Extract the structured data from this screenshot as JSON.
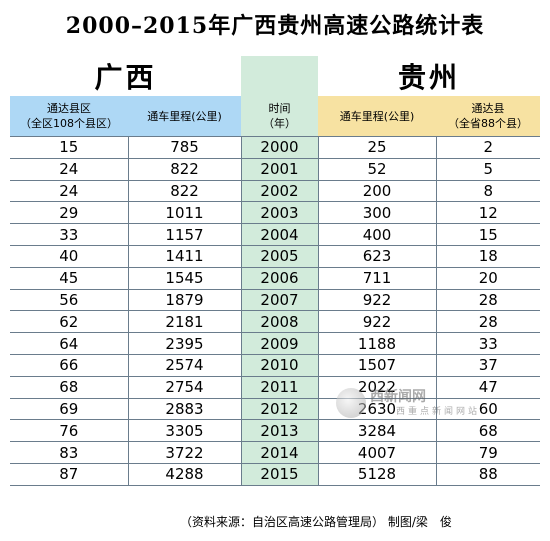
{
  "title": "2000–2015年广西贵州高速公路统计表",
  "left_region": "广西",
  "right_region": "贵州",
  "headers": {
    "gx_counties": "通达县区\n（全区108个县区）",
    "gx_km": "通车里程(公里)",
    "year": "时间\n（年）",
    "gz_km": "通车里程(公里)",
    "gz_counties": "通达县\n（全省88个县）"
  },
  "chart_data": {
    "type": "table",
    "title": "2000–2015年广西贵州高速公路统计表",
    "columns": [
      "通达县区（全区108个县区）",
      "通车里程(公里)",
      "时间（年）",
      "通车里程(公里)",
      "通达县（全省88个县）"
    ],
    "rows": [
      [
        "15",
        "785",
        "2000",
        "25",
        "2"
      ],
      [
        "24",
        "822",
        "2001",
        "52",
        "5"
      ],
      [
        "24",
        "822",
        "2002",
        "200",
        "8"
      ],
      [
        "29",
        "1011",
        "2003",
        "300",
        "12"
      ],
      [
        "33",
        "1157",
        "2004",
        "400",
        "15"
      ],
      [
        "40",
        "1411",
        "2005",
        "623",
        "18"
      ],
      [
        "45",
        "1545",
        "2006",
        "711",
        "20"
      ],
      [
        "56",
        "1879",
        "2007",
        "922",
        "28"
      ],
      [
        "62",
        "2181",
        "2008",
        "922",
        "28"
      ],
      [
        "64",
        "2395",
        "2009",
        "1188",
        "33"
      ],
      [
        "66",
        "2574",
        "2010",
        "1507",
        "37"
      ],
      [
        "68",
        "2754",
        "2011",
        "2022",
        "47"
      ],
      [
        "69",
        "2883",
        "2012",
        "2630",
        "60"
      ],
      [
        "76",
        "3305",
        "2013",
        "3284",
        "68"
      ],
      [
        "83",
        "3722",
        "2014",
        "4007",
        "79"
      ],
      [
        "87",
        "4288",
        "2015",
        "5128",
        "88"
      ]
    ]
  },
  "footer": "（资料来源：自治区高速公路管理局）  制图/梁　俊",
  "watermark": {
    "line1": "西新闻网",
    "line2": "西重点新闻网站"
  }
}
